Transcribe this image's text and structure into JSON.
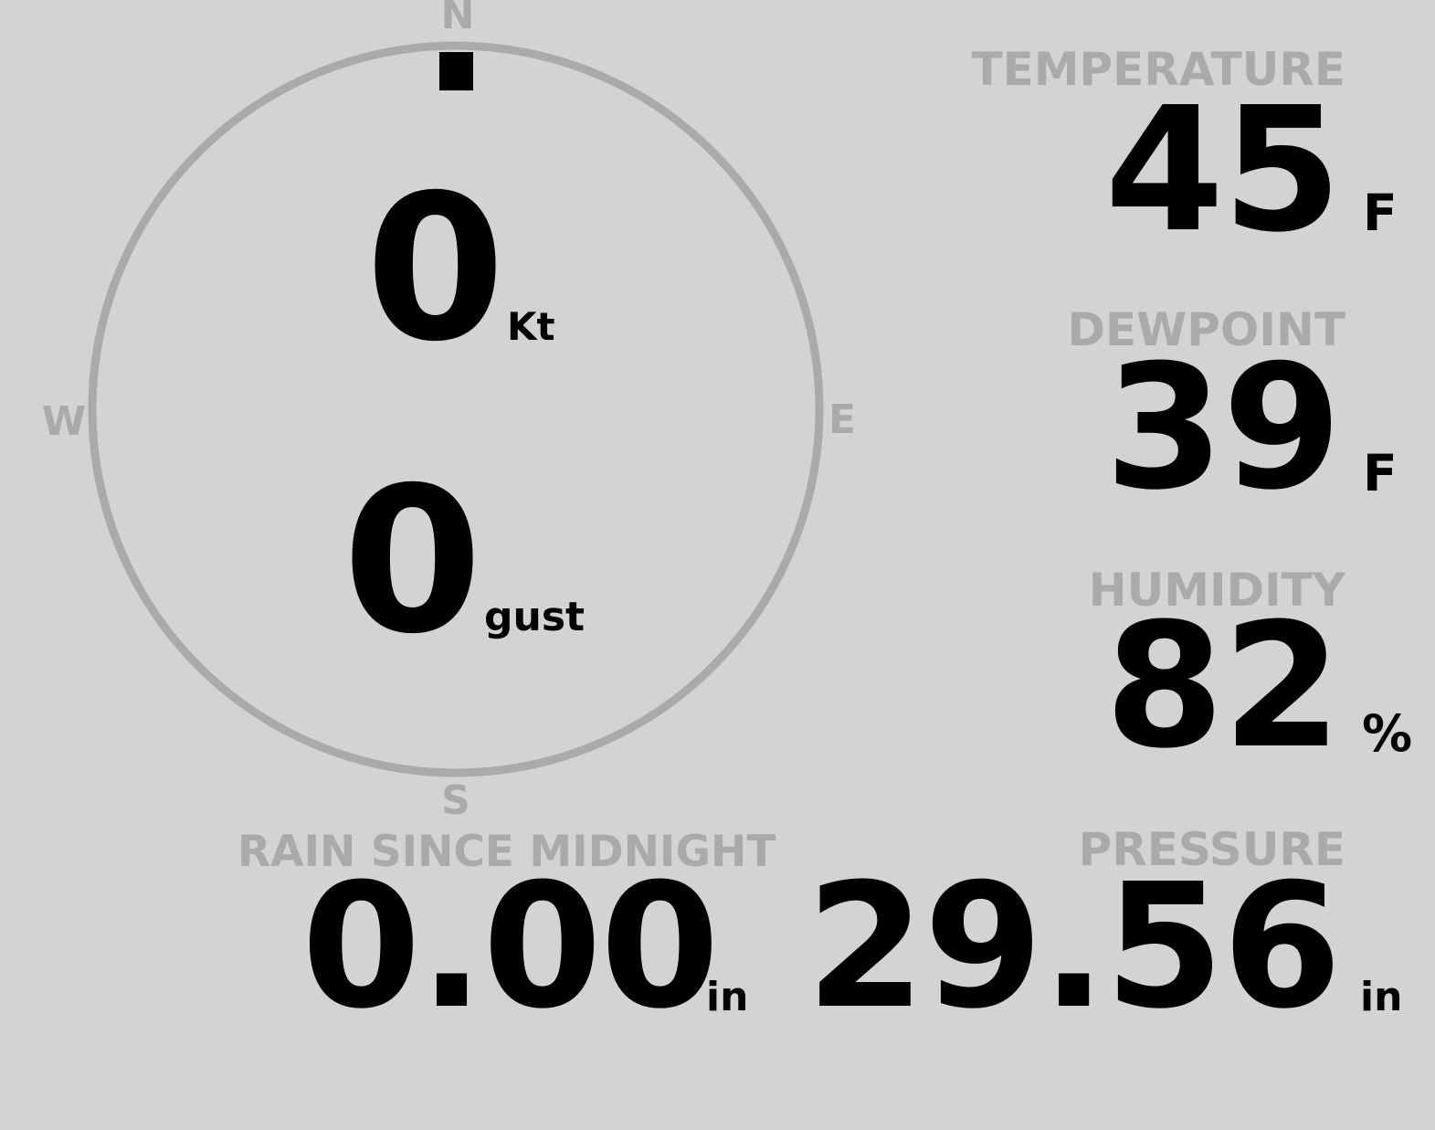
{
  "colors": {
    "background": "#d3d3d3",
    "label": "#aaaaaa",
    "value": "#000000",
    "compass_ring": "#aaaaaa",
    "direction_marker": "#000000"
  },
  "wind": {
    "cardinals": {
      "n": "N",
      "e": "E",
      "s": "S",
      "w": "W"
    },
    "direction_deg": 0,
    "speed": "0",
    "speed_unit": "Kt",
    "gust": "0",
    "gust_unit": "gust"
  },
  "temperature": {
    "label": "TEMPERATURE",
    "value": "45",
    "unit": "F"
  },
  "dewpoint": {
    "label": "DEWPOINT",
    "value": "39",
    "unit": "F"
  },
  "humidity": {
    "label": "HUMIDITY",
    "value": "82",
    "unit": "%"
  },
  "rain": {
    "label": "RAIN SINCE MIDNIGHT",
    "value": "0.00",
    "unit": "in"
  },
  "pressure": {
    "label": "PRESSURE",
    "value": "29.56",
    "unit": "in"
  }
}
